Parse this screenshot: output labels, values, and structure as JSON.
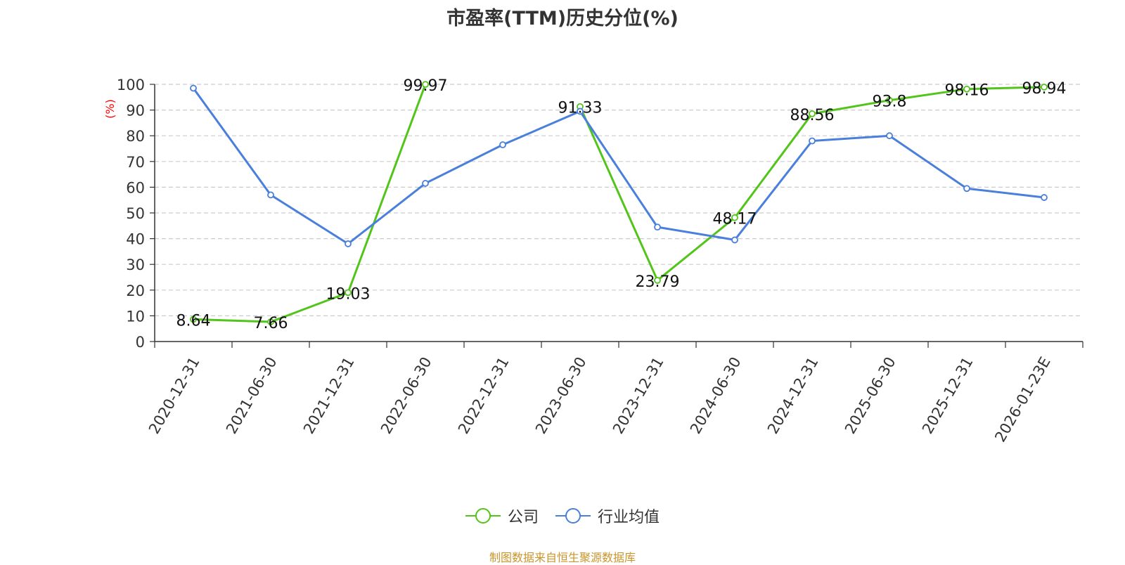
{
  "chart_data": {
    "type": "line",
    "title": "市盈率(TTM)历史分位(%)",
    "ylabel": "(%)",
    "ylim": [
      0,
      100
    ],
    "yticks": [
      0,
      10,
      20,
      30,
      40,
      50,
      60,
      70,
      80,
      90,
      100
    ],
    "grid": true,
    "legend_position": "bottom",
    "categories": [
      "2020-12-31",
      "2021-06-30",
      "2021-12-31",
      "2022-06-30",
      "2022-12-31",
      "2023-06-30",
      "2023-12-31",
      "2024-06-30",
      "2024-12-31",
      "2025-06-30",
      "2025-12-31",
      "2026-01-23E"
    ],
    "series": [
      {
        "name": "公司",
        "color": "#52c41a",
        "values": [
          8.64,
          7.66,
          19.03,
          99.97,
          null,
          91.33,
          23.79,
          48.17,
          88.56,
          93.8,
          98.16,
          98.94
        ],
        "labels": [
          "8.64",
          "7.66",
          "19.03",
          "99.97",
          null,
          "91.33",
          "23.79",
          "48.17",
          "88.56",
          "93.8",
          "98.16",
          "98.94"
        ]
      },
      {
        "name": "行业均值",
        "color": "#4a7fdc",
        "values": [
          98.5,
          57,
          38,
          61.5,
          76.5,
          89.5,
          44.5,
          39.5,
          78,
          80,
          59.5,
          56
        ]
      }
    ],
    "source": "制图数据来自恒生聚源数据库"
  }
}
